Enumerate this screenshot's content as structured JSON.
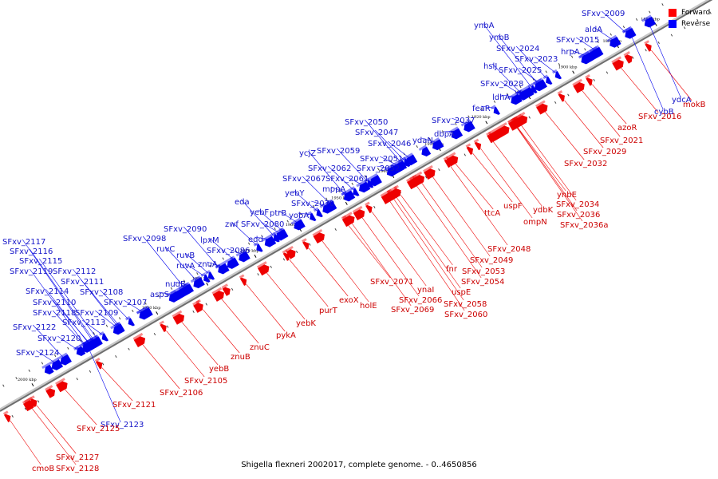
{
  "caption": "Shigella flexneri 2002017, complete genome. - 0..4650856",
  "legend": [
    {
      "label": "Forward",
      "color": "#ff0000"
    },
    {
      "label": "Reverse",
      "color": "#0000ff"
    }
  ],
  "colors": {
    "forward_label": "#cc0000",
    "reverse_label": "#1414c8",
    "forward_gene": "#ee0000",
    "reverse_gene": "#0000ee"
  },
  "scale_kbp": [
    1880,
    1890,
    1900,
    1910,
    1920,
    1930,
    1940,
    1950,
    1960,
    1970,
    1980,
    1990,
    2000
  ],
  "reverse_genes": [
    "ynbA",
    "ynbB",
    "SFxv_2009",
    "aldA",
    "SFxv_2024",
    "SFxv_2015",
    "SFxv_2023",
    "hrpA",
    "hslJ",
    "SFxv_2025",
    "SFxv_2028",
    "ldhA",
    "feaR",
    "SFxv_2037",
    "SFxv_2050",
    "dbpA",
    "SFxv_2047",
    "ydaN",
    "ycjZ",
    "SFxv_2046",
    "SFxv_2059",
    "SFxv_2051",
    "SFxv_2062",
    "SFxv_2052",
    "SFxv_2067",
    "SFxv_2061",
    "yebY",
    "mppA",
    "eda",
    "SFxv_2070",
    "yebF",
    "ptrB",
    "zwf",
    "SFxv_2080",
    "yobA",
    "edd",
    "SFxv_2090",
    "SFxv_2098",
    "lpxM",
    "ruvC",
    "ruvB",
    "SFxv_2086",
    "ruvA",
    "znuA",
    "nudB",
    "aspS",
    "SFxv_2117",
    "SFxv_2116",
    "SFxv_2115",
    "SFxv_2119",
    "SFxv_2112",
    "SFxv_2114",
    "SFxv_2108",
    "SFxv_2110",
    "SFxv_2111",
    "SFxv_2107",
    "SFxv_2118",
    "SFxv_2109",
    "SFxv_2113",
    "SFxv_2122",
    "SFxv_2120",
    "SFxv_2124",
    "SFxv_2123",
    "ydcA",
    "cybB"
  ],
  "forward_genes": [
    "mokB",
    "SFxv_2016",
    "azoR",
    "SFxv_2021",
    "SFxv_2029",
    "SFxv_2032",
    "ynbE",
    "SFxv_2034",
    "ydbK",
    "SFxv_2036",
    "ompN",
    "SFxv_2036a",
    "uspF",
    "ttcA",
    "SFxv_2048",
    "SFxv_2049",
    "fnr",
    "SFxv_2053",
    "SFxv_2054",
    "uspE",
    "SFxv_2058",
    "SFxv_2060",
    "ynaI",
    "SFxv_2066",
    "SFxv_2071",
    "SFxv_2069",
    "exoX",
    "holE",
    "purT",
    "yebK",
    "pykA",
    "znuC",
    "znuB",
    "yebB",
    "SFxv_2105",
    "SFxv_2106",
    "SFxv_2121",
    "SFxv_2125",
    "SFxv_2127",
    "SFxv_2128",
    "cmoB"
  ]
}
